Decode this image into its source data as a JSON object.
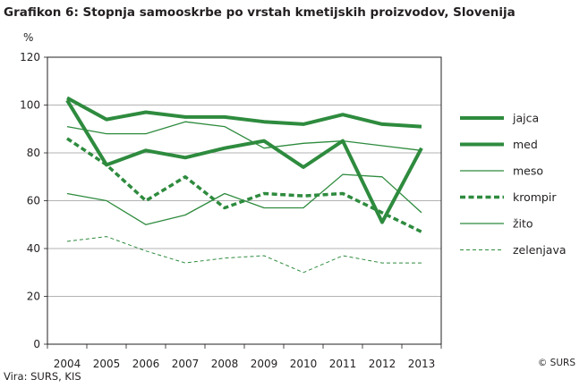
{
  "header": {
    "title": "Grafikon 6: Stopnja samooskrbe po vrstah kmetijskih proizvodov, Slovenija",
    "unit": "%"
  },
  "footer": {
    "source": "Vira: SURS, KIS",
    "copyright": "© SURS"
  },
  "colors": {
    "line": "#2e8b3e",
    "axis": "#231f20"
  },
  "chart_data": {
    "type": "line",
    "title": "Grafikon 6: Stopnja samooskrbe po vrstah kmetijskih proizvodov, Slovenija",
    "ylabel": "%",
    "xlabel": "",
    "categories": [
      "2004",
      "2005",
      "2006",
      "2007",
      "2008",
      "2009",
      "2010",
      "2011",
      "2012",
      "2013"
    ],
    "ylim": [
      0,
      120
    ],
    "yticks": [
      0,
      20,
      40,
      60,
      80,
      100,
      120
    ],
    "grid": true,
    "legend_position": "right",
    "series": [
      {
        "name": "jajca",
        "style": "thick-solid",
        "values": [
          103,
          94,
          97,
          95,
          95,
          93,
          92,
          96,
          92,
          91
        ]
      },
      {
        "name": "med",
        "style": "thick-solid",
        "values": [
          102,
          75,
          81,
          78,
          82,
          85,
          74,
          85,
          51,
          82
        ]
      },
      {
        "name": "meso",
        "style": "thin-solid",
        "values": [
          91,
          88,
          88,
          93,
          91,
          82,
          84,
          85,
          83,
          81
        ]
      },
      {
        "name": "krompir",
        "style": "thick-dashed",
        "values": [
          86,
          75,
          60,
          70,
          57,
          63,
          62,
          63,
          55,
          47
        ]
      },
      {
        "name": "žito",
        "style": "thin-solid",
        "values": [
          63,
          60,
          50,
          54,
          63,
          57,
          57,
          71,
          70,
          55
        ]
      },
      {
        "name": "zelenjava",
        "style": "thin-dashed",
        "values": [
          43,
          45,
          39,
          34,
          36,
          37,
          30,
          37,
          34,
          34
        ]
      }
    ]
  }
}
